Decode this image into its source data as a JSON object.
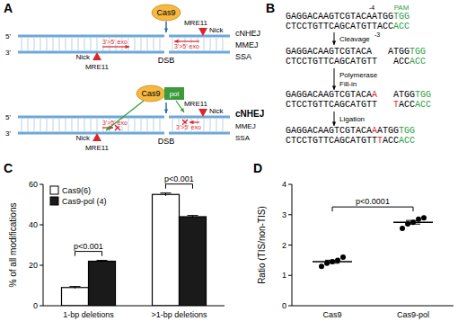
{
  "diagram": {
    "panel_a": {
      "label": "A",
      "strand_ends": [
        "5'",
        "3'"
      ],
      "schemes": [
        {
          "enzyme": "Cas9",
          "break": "DSB",
          "nuclease": "MRE11",
          "nick": "Nick",
          "exo": "3'>5' exo",
          "pathways": [
            "cNHEJ",
            "MMEJ",
            "SSA"
          ]
        },
        {
          "enzyme": "Cas9",
          "polymerase": "pol",
          "break": "DSB",
          "nuclease": "MRE11",
          "nick": "Nick",
          "exo": "3'>5' exo",
          "pathways": [
            "cNHEJ",
            "MMEJ",
            "SSA"
          ]
        }
      ]
    },
    "panel_b": {
      "label": "B",
      "pam": "PAM",
      "cut_top": "-4",
      "cut_bottom": "-3",
      "steps": [
        "Cleavage",
        "Polymerase",
        "Fill-in",
        "Ligation"
      ],
      "sequences": [
        {
          "top": [
            {
              "text": "GAGGACAAGTCGTACAATGG"
            },
            {
              "text": "TGG",
              "color": "#2e9e3e"
            }
          ],
          "bottom": [
            {
              "text": "CTCCTGTTCAGCATGTTACC"
            },
            {
              "text": "ACC",
              "color": "#2e9e3e"
            }
          ]
        },
        {
          "top": [
            {
              "text": "GAGGACAAGTCGTACA"
            },
            {
              "text": "ATGG",
              "after_gap": true
            },
            {
              "text": "TGG",
              "color": "#2e9e3e"
            }
          ],
          "bottom": [
            {
              "text": "CTCCTGTTCAGCATGTT"
            },
            {
              "text": "ACC",
              "after_gap": true
            },
            {
              "text": "ACC",
              "color": "#2e9e3e"
            }
          ]
        },
        {
          "top": [
            {
              "text": "GAGGACAAGTCGTACA"
            },
            {
              "text": "A",
              "color": "#e02020"
            },
            {
              "text": "ATGG",
              "after_gap": true
            },
            {
              "text": "TGG",
              "color": "#2e9e3e"
            }
          ],
          "bottom": [
            {
              "text": "CTCCTGTTCAGCATGTT"
            },
            {
              "text": "T",
              "color": "#e02020",
              "after_gap": true
            },
            {
              "text": "ACC"
            },
            {
              "text": "ACC",
              "color": "#2e9e3e"
            }
          ]
        },
        {
          "top": [
            {
              "text": "GAGGACAAGTCGTACA"
            },
            {
              "text": "A",
              "color": "#e02020"
            },
            {
              "text": "ATGG"
            },
            {
              "text": "TGG",
              "color": "#2e9e3e"
            }
          ],
          "bottom": [
            {
              "text": "CTCCTGTTCAGCATGTT"
            },
            {
              "text": "T",
              "color": "#e02020"
            },
            {
              "text": "ACC"
            },
            {
              "text": "ACC",
              "color": "#2e9e3e"
            }
          ]
        }
      ]
    }
  },
  "chart_data": [
    {
      "type": "bar",
      "title": "C",
      "ylabel": "% of all modifications",
      "categories": [
        "1-bp deletions",
        ">1-bp deletions"
      ],
      "series": [
        {
          "name": "Cas9(6)",
          "color": "#ffffff",
          "values": [
            9,
            55
          ],
          "errors": [
            0.5,
            0.7
          ]
        },
        {
          "name": "Cas9-pol (4)",
          "color": "#1a1a1a",
          "values": [
            22,
            44
          ],
          "errors": [
            0.4,
            0.6
          ]
        }
      ],
      "ylim": [
        0,
        60
      ],
      "yticks": [
        0,
        20,
        40,
        60
      ],
      "legend": "upper left",
      "annotations": [
        {
          "text": "p<0.001",
          "categories": [
            0
          ]
        },
        {
          "text": "p<0.001",
          "categories": [
            1
          ]
        }
      ]
    },
    {
      "type": "scatter",
      "title": "D",
      "ylabel": "Ratio (TIS/non-TIS)",
      "categories": [
        "Cas9",
        "Cas9-pol"
      ],
      "points": [
        [
          1.3,
          1.4,
          1.45,
          1.5,
          1.6
        ],
        [
          2.55,
          2.7,
          2.75,
          2.85,
          2.9
        ]
      ],
      "means": [
        1.45,
        2.75
      ],
      "errors": [
        0.05,
        0.06
      ],
      "color": "#000000",
      "ylim": [
        0,
        4
      ],
      "yticks": [
        0,
        1,
        2,
        3,
        4
      ],
      "annotations": [
        {
          "text": "p<0.0001",
          "categories": [
            0,
            1
          ]
        }
      ]
    }
  ]
}
